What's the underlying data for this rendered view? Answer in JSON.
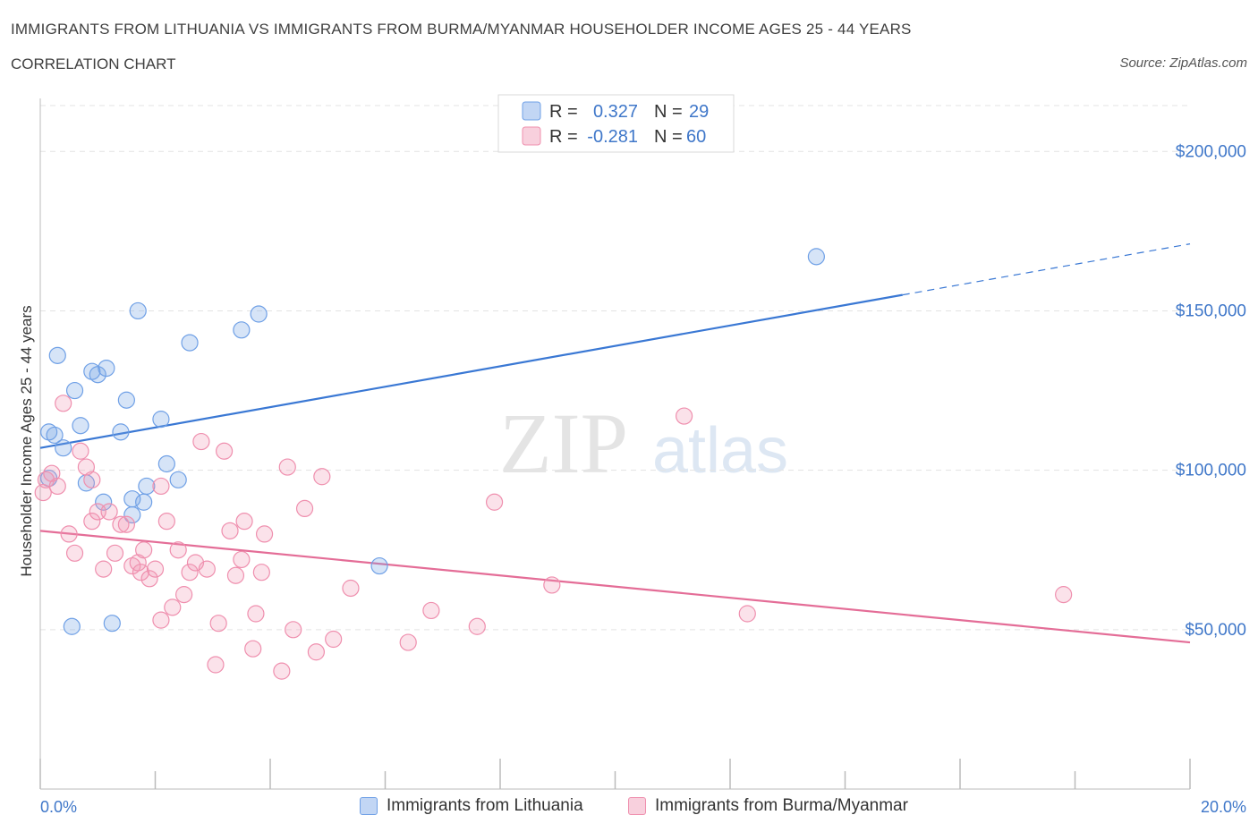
{
  "header": {
    "title": "IMMIGRANTS FROM LITHUANIA VS IMMIGRANTS FROM BURMA/MYANMAR HOUSEHOLDER INCOME AGES 25 - 44 YEARS",
    "subtitle": "CORRELATION CHART",
    "source": "Source: ZipAtlas.com"
  },
  "watermark": {
    "zip": "ZIP",
    "atlas": "atlas"
  },
  "legend_box": {
    "rows": [
      {
        "r_label": "R =",
        "r_value": "0.327",
        "n_label": "N =",
        "n_value": "29",
        "color": "#6fa0e6"
      },
      {
        "r_label": "R =",
        "r_value": "-0.281",
        "n_label": "N =",
        "n_value": "60",
        "color": "#ef8fae"
      }
    ]
  },
  "bottom_legend": [
    {
      "label": "Immigrants from Lithuania",
      "color": "#6fa0e6"
    },
    {
      "label": "Immigrants from Burma/Myanmar",
      "color": "#ef8fae"
    }
  ],
  "chart_data": {
    "type": "scatter",
    "title": "IMMIGRANTS FROM LITHUANIA VS IMMIGRANTS FROM BURMA/MYANMAR HOUSEHOLDER INCOME AGES 25 - 44 YEARS",
    "subtitle": "CORRELATION CHART",
    "xlabel": "",
    "ylabel": "Householder Income Ages 25 - 44 years",
    "xlim": [
      0,
      20
    ],
    "ylim": [
      0,
      220000
    ],
    "x_tick_labels": [
      {
        "value": 0,
        "label": "0.0%"
      },
      {
        "value": 20,
        "label": "20.0%"
      }
    ],
    "y_ticks": [
      {
        "value": 50000,
        "label": "$50,000"
      },
      {
        "value": 100000,
        "label": "$100,000"
      },
      {
        "value": 150000,
        "label": "$150,000"
      },
      {
        "value": 200000,
        "label": "$200,000"
      }
    ],
    "grid": true,
    "legend_position": "top-center",
    "series": [
      {
        "name": "Immigrants from Lithuania",
        "color": "#6fa0e6",
        "fill": "rgba(120,165,230,0.30)",
        "points": [
          [
            0.15,
            97500
          ],
          [
            0.15,
            112000
          ],
          [
            0.25,
            111000
          ],
          [
            0.3,
            136000
          ],
          [
            0.4,
            107000
          ],
          [
            0.6,
            125000
          ],
          [
            0.7,
            114000
          ],
          [
            0.8,
            96000
          ],
          [
            0.9,
            131000
          ],
          [
            1.0,
            130000
          ],
          [
            1.15,
            132000
          ],
          [
            1.1,
            90000
          ],
          [
            1.4,
            112000
          ],
          [
            1.5,
            122000
          ],
          [
            1.6,
            86000
          ],
          [
            1.6,
            91000
          ],
          [
            1.7,
            150000
          ],
          [
            1.8,
            90000
          ],
          [
            1.85,
            95000
          ],
          [
            2.1,
            116000
          ],
          [
            2.2,
            102000
          ],
          [
            2.4,
            97000
          ],
          [
            2.6,
            140000
          ],
          [
            3.5,
            144000
          ],
          [
            3.8,
            149000
          ],
          [
            5.9,
            70000
          ],
          [
            1.25,
            52000
          ],
          [
            0.55,
            51000
          ],
          [
            13.5,
            167000
          ]
        ],
        "trend": {
          "x": [
            0,
            15
          ],
          "y": [
            107000,
            155000
          ],
          "dashed_to": {
            "x": 20,
            "y": 171000
          }
        }
      },
      {
        "name": "Immigrants from Burma/Myanmar",
        "color": "#ef8fae",
        "fill": "rgba(240,150,180,0.28)",
        "points": [
          [
            0.05,
            93000
          ],
          [
            0.1,
            97000
          ],
          [
            0.2,
            99000
          ],
          [
            0.3,
            95000
          ],
          [
            0.4,
            121000
          ],
          [
            0.5,
            80000
          ],
          [
            0.6,
            74000
          ],
          [
            0.7,
            106000
          ],
          [
            0.8,
            101000
          ],
          [
            0.9,
            97000
          ],
          [
            0.9,
            84000
          ],
          [
            1.0,
            87000
          ],
          [
            1.1,
            69000
          ],
          [
            1.2,
            87000
          ],
          [
            1.3,
            74000
          ],
          [
            1.4,
            83000
          ],
          [
            1.5,
            83000
          ],
          [
            1.6,
            70000
          ],
          [
            1.7,
            71000
          ],
          [
            1.75,
            68000
          ],
          [
            1.8,
            75000
          ],
          [
            1.9,
            66000
          ],
          [
            2.0,
            69000
          ],
          [
            2.1,
            95000
          ],
          [
            2.1,
            53000
          ],
          [
            2.2,
            84000
          ],
          [
            2.3,
            57000
          ],
          [
            2.4,
            75000
          ],
          [
            2.5,
            61000
          ],
          [
            2.6,
            68000
          ],
          [
            2.7,
            71000
          ],
          [
            2.8,
            109000
          ],
          [
            2.9,
            69000
          ],
          [
            3.05,
            39000
          ],
          [
            3.1,
            52000
          ],
          [
            3.2,
            106000
          ],
          [
            3.3,
            81000
          ],
          [
            3.4,
            67000
          ],
          [
            3.5,
            72000
          ],
          [
            3.55,
            84000
          ],
          [
            3.7,
            44000
          ],
          [
            3.75,
            55000
          ],
          [
            3.85,
            68000
          ],
          [
            3.9,
            80000
          ],
          [
            4.2,
            37000
          ],
          [
            4.3,
            101000
          ],
          [
            4.4,
            50000
          ],
          [
            4.6,
            88000
          ],
          [
            4.8,
            43000
          ],
          [
            4.9,
            98000
          ],
          [
            5.1,
            47000
          ],
          [
            5.4,
            63000
          ],
          [
            6.4,
            46000
          ],
          [
            6.8,
            56000
          ],
          [
            7.6,
            51000
          ],
          [
            7.9,
            90000
          ],
          [
            8.9,
            64000
          ],
          [
            11.2,
            117000
          ],
          [
            12.3,
            55000
          ],
          [
            17.8,
            61000
          ]
        ],
        "trend": {
          "x": [
            0,
            20
          ],
          "y": [
            81000,
            46000
          ]
        }
      }
    ]
  }
}
